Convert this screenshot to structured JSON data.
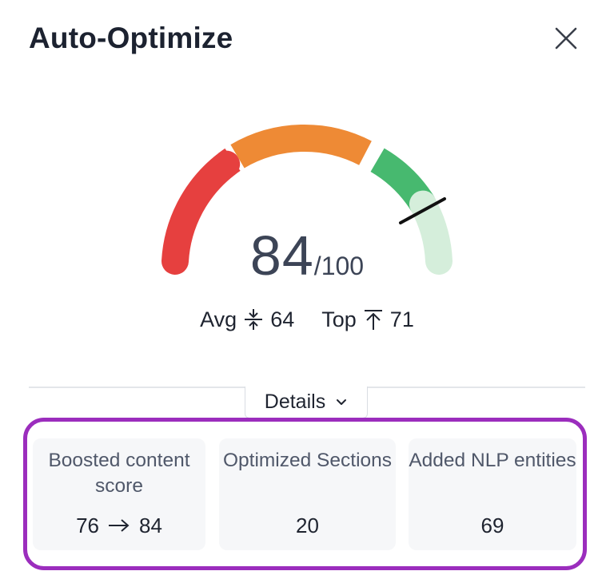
{
  "panel": {
    "title": "Auto-Optimize"
  },
  "gauge": {
    "score": "84",
    "max": "/100",
    "score_fraction": 0.84,
    "segment_colors": {
      "low": "#e6403f",
      "mid": "#ee8a35",
      "high": "#47b96f",
      "top": "#d5eedb"
    },
    "avg_label": "Avg",
    "avg_value": "64",
    "top_label": "Top",
    "top_value": "71"
  },
  "details": {
    "label": "Details"
  },
  "metrics": [
    {
      "label": "Boosted content score",
      "from": "76",
      "to": "84"
    },
    {
      "label": "Optimized Sections",
      "value": "20"
    },
    {
      "label": "Added NLP entities",
      "value": "69"
    }
  ],
  "colors": {
    "highlight": "#9b2dbd",
    "card_bg": "#f6f7f9"
  }
}
